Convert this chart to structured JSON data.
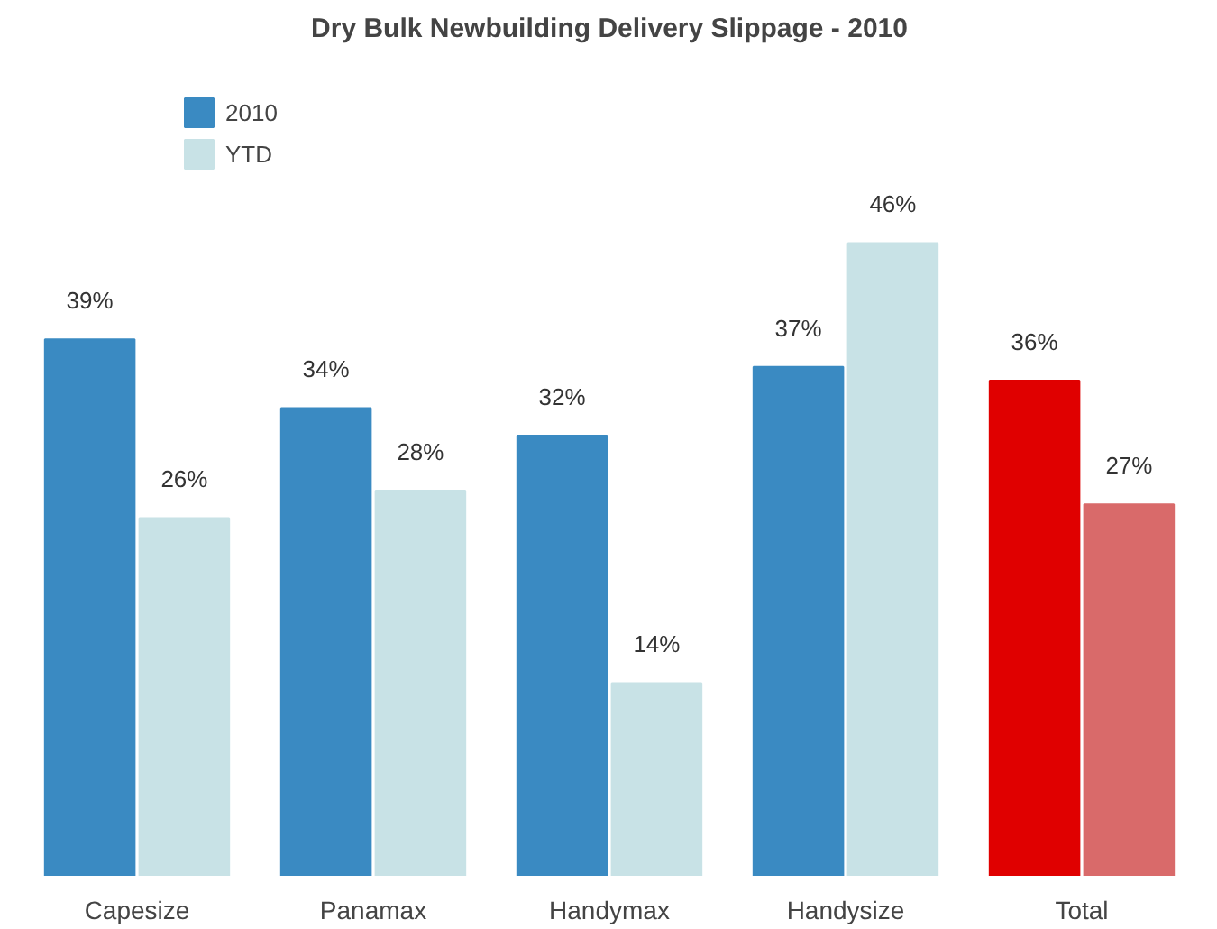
{
  "chart_data": {
    "type": "bar",
    "title": "Dry Bulk Newbuilding Delivery Slippage - 2010",
    "categories": [
      "Capesize",
      "Panamax",
      "Handymax",
      "Handysize",
      "Total"
    ],
    "series": [
      {
        "name": "2010",
        "color": "#3a8ac2",
        "colors": [
          null,
          null,
          null,
          null,
          "#e00000"
        ],
        "values": [
          39,
          34,
          32,
          37,
          36
        ],
        "value_labels": [
          "39%",
          "34%",
          "32%",
          "37%",
          "36%"
        ]
      },
      {
        "name": "YTD",
        "color": "#c8e2e6",
        "colors": [
          null,
          null,
          null,
          null,
          "#d96a6a"
        ],
        "values": [
          26,
          28,
          14,
          46,
          27
        ],
        "value_labels": [
          "26%",
          "28%",
          "14%",
          "46%",
          "27%"
        ]
      }
    ],
    "grid": false,
    "legend": "top left"
  }
}
